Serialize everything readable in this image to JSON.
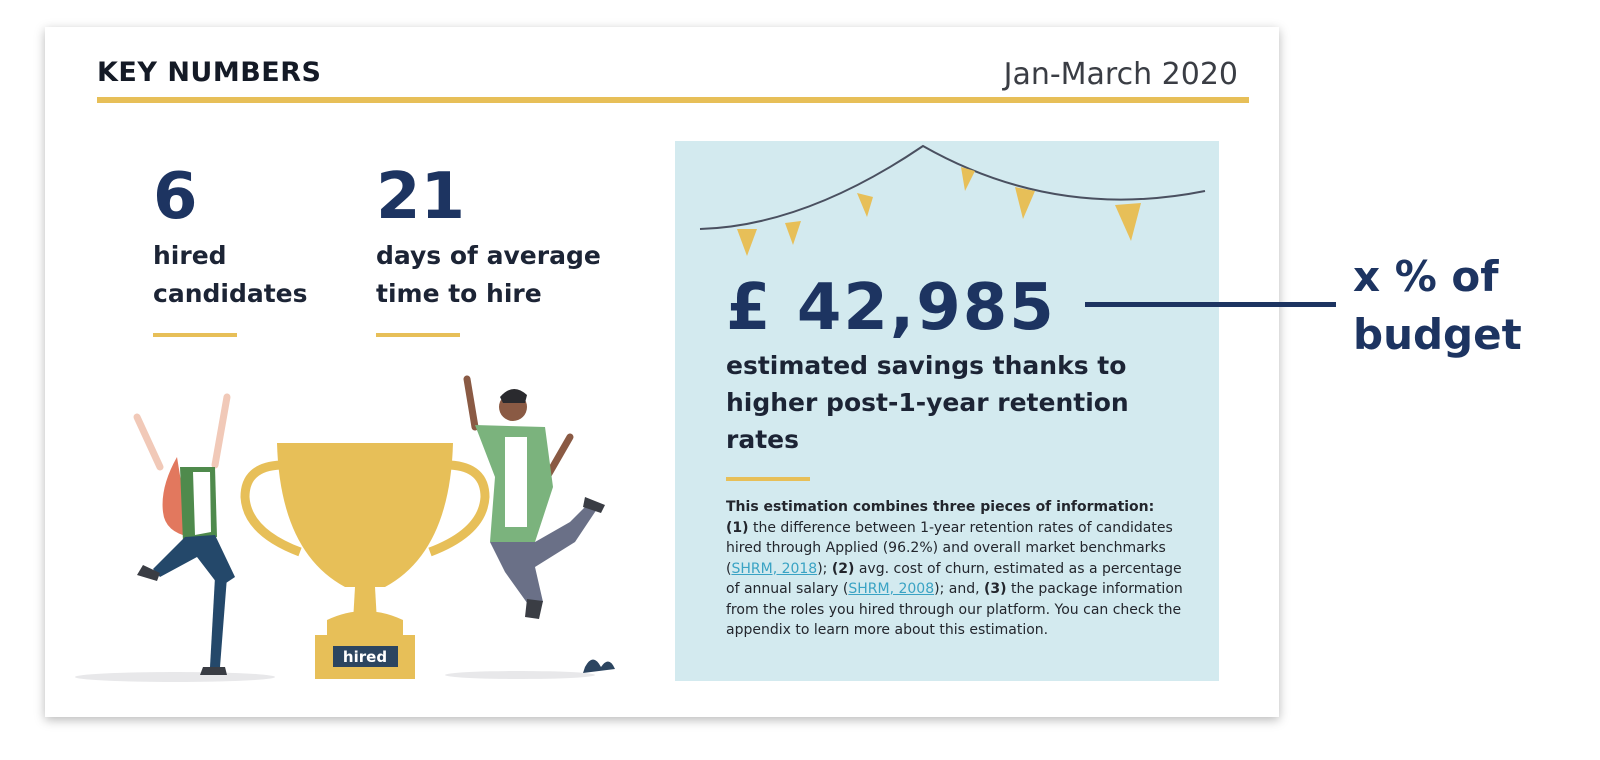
{
  "header": {
    "title": "KEY NUMBERS",
    "period": "Jan-March 2020"
  },
  "stats": [
    {
      "value": "6",
      "label_line1": "hired",
      "label_line2": "candidates"
    },
    {
      "value": "21",
      "label_line1": "days of average",
      "label_line2": "time to hire"
    }
  ],
  "illustration": {
    "trophy_label": "hired"
  },
  "savings": {
    "amount": "£ 42,985",
    "description": "estimated savings thanks to higher post-1-year retention rates"
  },
  "note": {
    "intro": "This estimation combines three pieces of information:",
    "p1_marker": "(1)",
    "p1_text": " the difference between 1-year retention rates of candidates hired through Applied (96.2%) and overall market benchmarks (",
    "link1": "SHRM, 2018",
    "p1_end": "); ",
    "p2_marker": "(2)",
    "p2_text": " avg. cost of churn, estimated as a percentage of annual salary (",
    "link2": "SHRM, 2008",
    "p2_end": "); and, ",
    "p3_marker": "(3)",
    "p3_text": " the package information from the roles you hired through our platform. You can check the appendix to learn more about this estimation."
  },
  "annotation": {
    "line1": "x % of",
    "line2": "budget"
  },
  "colors": {
    "navy": "#1d3461",
    "gold": "#e7bf58",
    "panel": "#d3eaef",
    "link": "#3aa3c4"
  }
}
